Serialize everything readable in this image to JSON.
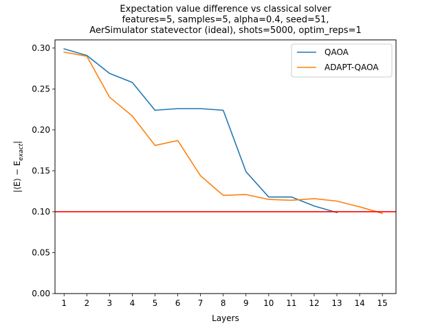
{
  "chart_data": {
    "type": "line",
    "title_lines": [
      "Expectation value difference vs classical solver",
      "features=5, samples=5, alpha=0.4, seed=51,",
      "AerSimulator statevector (ideal), shots=5000, optim_reps=1"
    ],
    "xlabel": "Layers",
    "ylabel": "|⟨E⟩ − E",
    "ylabel_sub": "exact",
    "xlim": [
      0.6,
      15.6
    ],
    "ylim": [
      0.0,
      0.31
    ],
    "xticks": [
      1,
      2,
      3,
      4,
      5,
      6,
      7,
      8,
      9,
      10,
      11,
      12,
      13,
      14,
      15
    ],
    "yticks": [
      "0.00",
      "0.05",
      "0.10",
      "0.15",
      "0.20",
      "0.25",
      "0.30"
    ],
    "grid": false,
    "legend_position": "top-right",
    "series": [
      {
        "name": "QAOA",
        "color": "#1f77b4",
        "x": [
          1,
          2,
          3,
          4,
          5,
          6,
          7,
          8,
          9,
          10,
          11,
          12,
          13
        ],
        "y": [
          0.299,
          0.291,
          0.269,
          0.258,
          0.224,
          0.226,
          0.226,
          0.224,
          0.149,
          0.118,
          0.118,
          0.107,
          0.099
        ]
      },
      {
        "name": "ADAPT-QAOA",
        "color": "#ff7f0e",
        "x": [
          1,
          2,
          3,
          4,
          5,
          6,
          7,
          8,
          9,
          10,
          11,
          12,
          13,
          14,
          15
        ],
        "y": [
          0.295,
          0.29,
          0.24,
          0.217,
          0.181,
          0.187,
          0.144,
          0.12,
          0.121,
          0.115,
          0.114,
          0.116,
          0.113,
          0.106,
          0.098
        ]
      }
    ],
    "reference_line": {
      "y": 0.1,
      "color": "#ff0000"
    }
  }
}
